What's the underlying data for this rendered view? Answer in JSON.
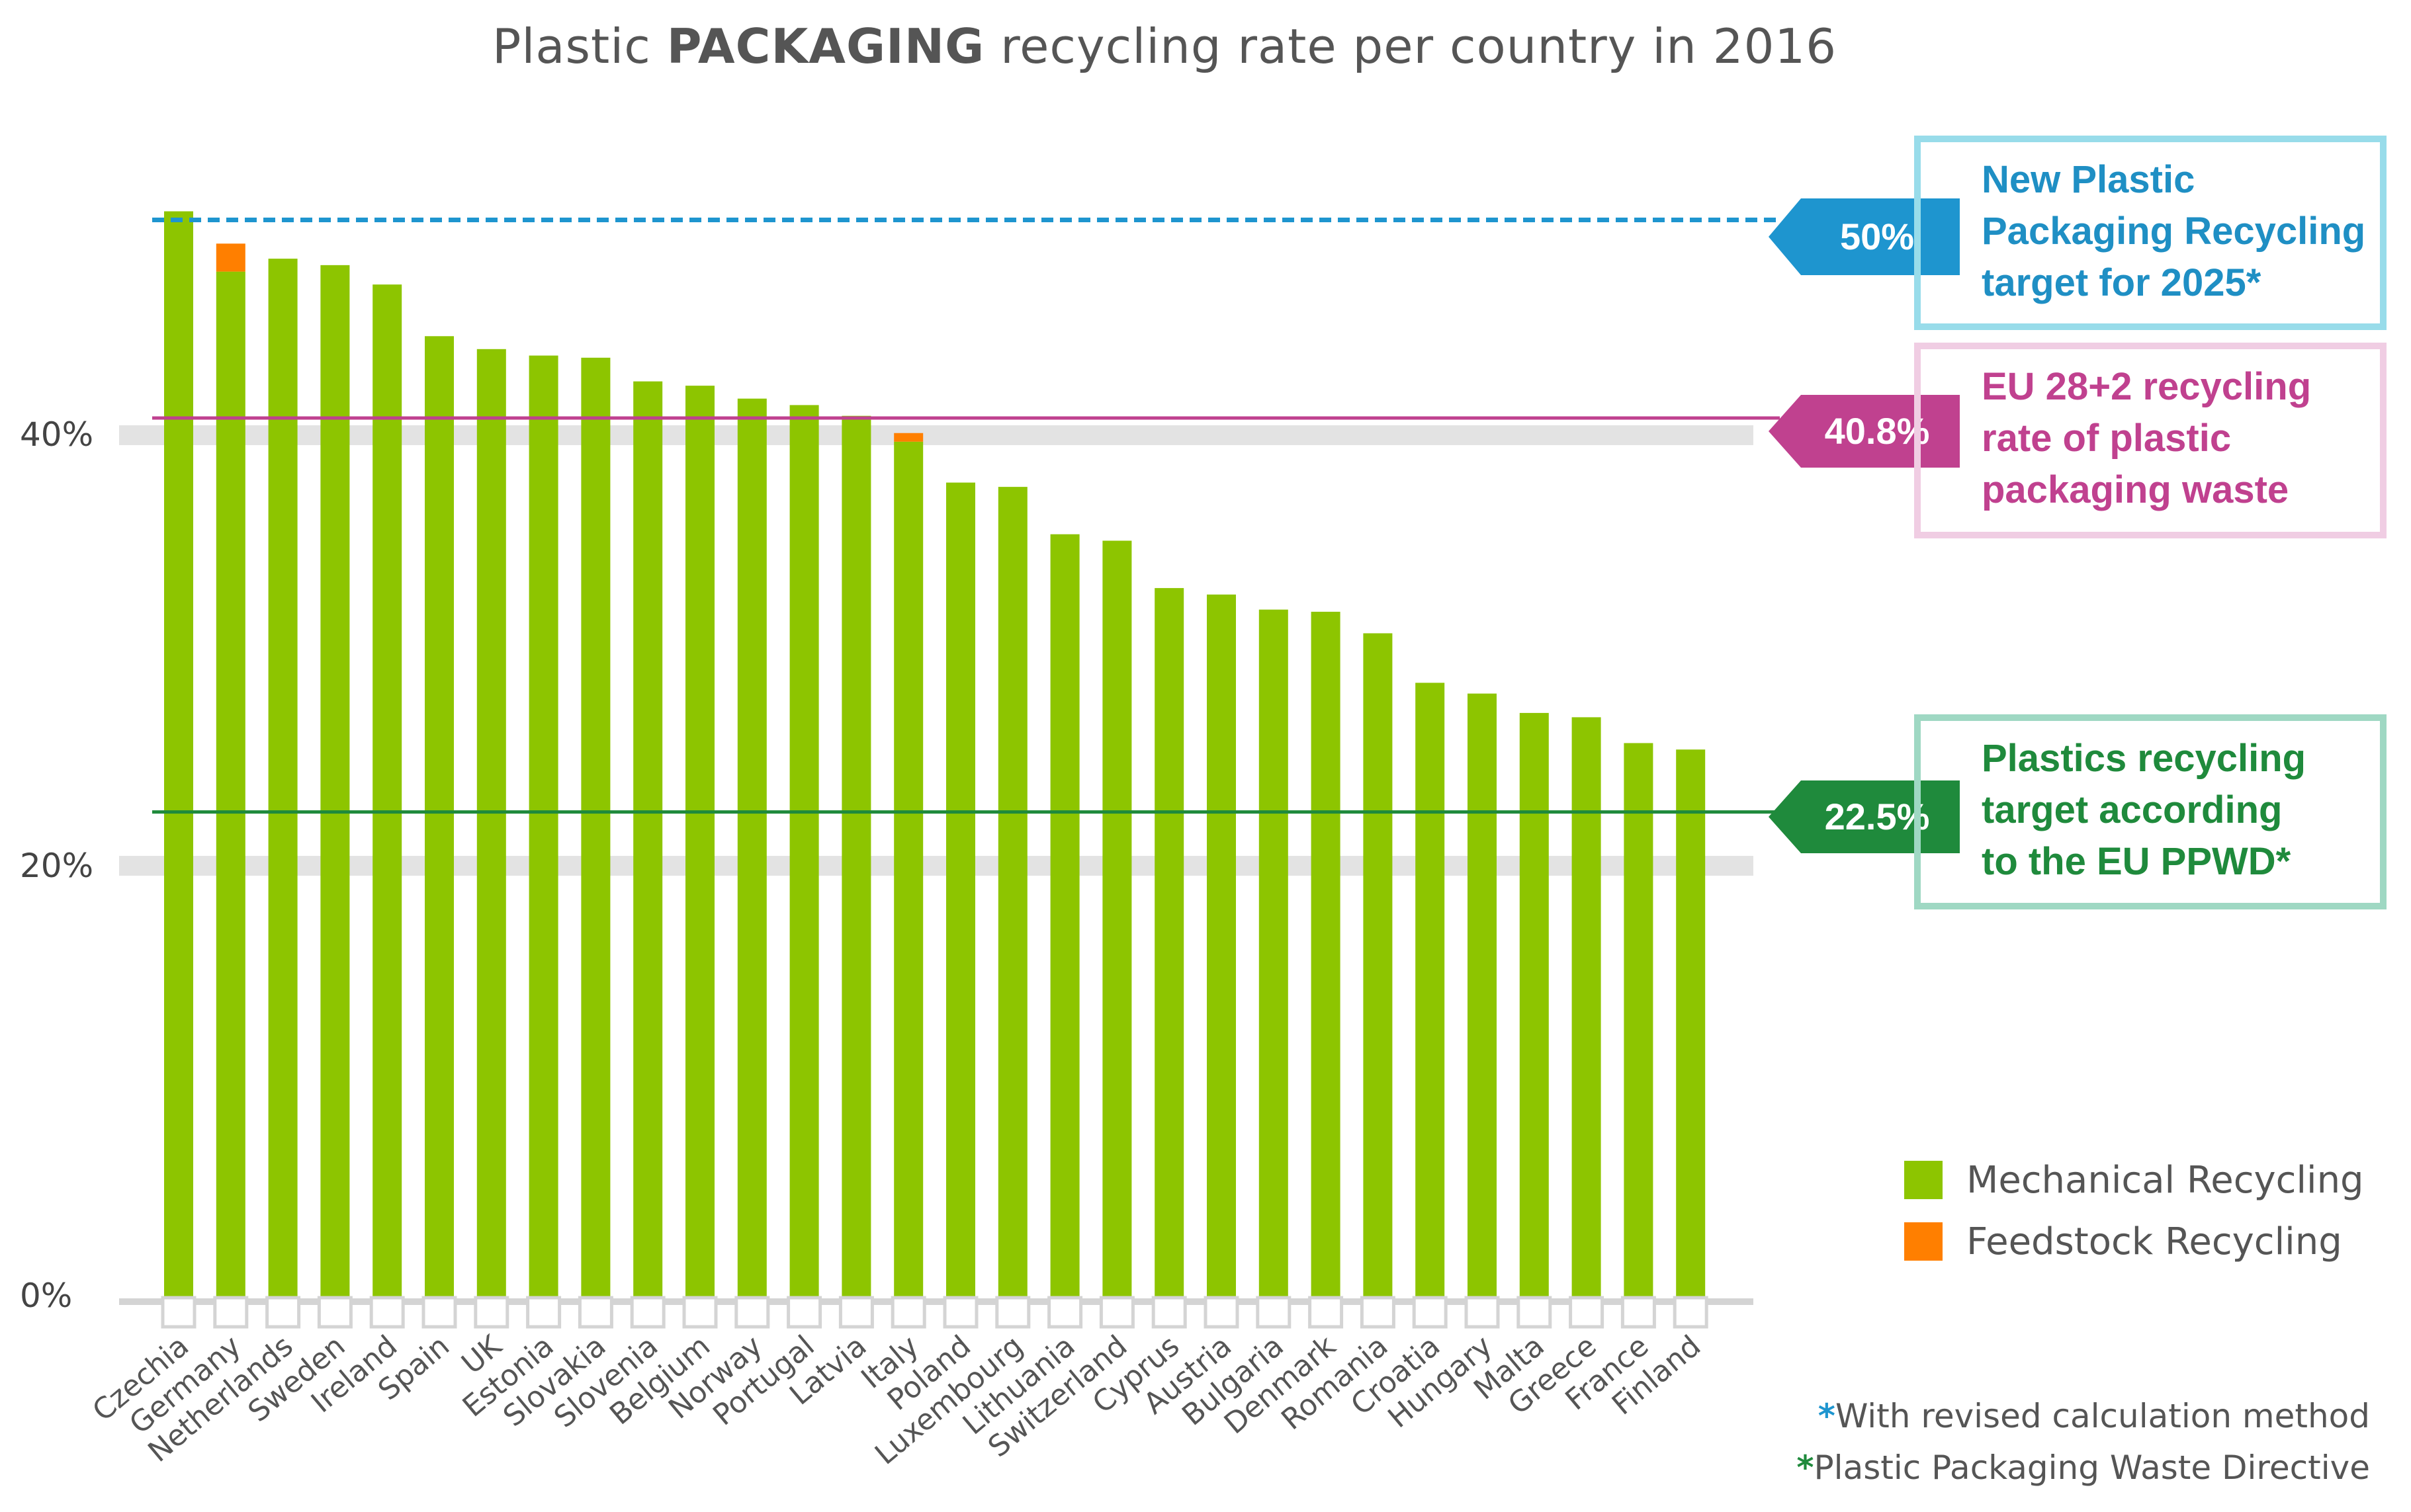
{
  "chart_data": {
    "type": "bar",
    "stacked": true,
    "title_prefix": "Plastic ",
    "title_bold": "PACKAGING",
    "title_suffix": " recycling rate per country in 2016",
    "categories": [
      "Czechia",
      "Germany",
      "Netherlands",
      "Sweden",
      "Ireland",
      "Spain",
      "UK",
      "Estonia",
      "Slovakia",
      "Slovenia",
      "Belgium",
      "Norway",
      "Portugal",
      "Latvia",
      "Italy",
      "Poland",
      "Luxembourg",
      "Lithuania",
      "Switzerland",
      "Cyprus",
      "Austria",
      "Bulgaria",
      "Denmark",
      "Romania",
      "Croatia",
      "Hungary",
      "Malta",
      "Greece",
      "France",
      "Finland"
    ],
    "series": [
      {
        "name": "Mechanical Recycling",
        "color": "#8dc500",
        "values": [
          50.4,
          47.6,
          48.2,
          47.9,
          47.0,
          44.6,
          44.0,
          43.7,
          43.6,
          42.5,
          42.3,
          41.7,
          41.4,
          40.9,
          39.7,
          37.8,
          37.6,
          35.4,
          35.1,
          32.9,
          32.6,
          31.9,
          31.8,
          30.8,
          28.5,
          28.0,
          27.1,
          26.9,
          25.7,
          25.4
        ]
      },
      {
        "name": "Feedstock Recycling",
        "color": "#ff7f00",
        "values": [
          0,
          1.3,
          0,
          0,
          0,
          0,
          0,
          0,
          0,
          0,
          0,
          0,
          0,
          0,
          0.4,
          0,
          0,
          0,
          0,
          0,
          0,
          0,
          0,
          0,
          0,
          0,
          0,
          0,
          0,
          0
        ]
      }
    ],
    "yticks": [
      {
        "value": 0,
        "label": "0%"
      },
      {
        "value": 20,
        "label": "20%"
      },
      {
        "value": 40,
        "label": "40%"
      }
    ],
    "ylim": [
      0,
      55
    ],
    "reference_lines": [
      {
        "value": 50,
        "tag": "50%",
        "style": "dashed",
        "color": "#1e95cf",
        "lines": [
          "New Plastic",
          "Packaging Recycling",
          "target for 2025*"
        ]
      },
      {
        "value": 40.8,
        "tag": "40.8%",
        "style": "solid",
        "color": "#c0418f",
        "lines": [
          "EU 28+2 recycling",
          "rate of plastic",
          "packaging waste"
        ]
      },
      {
        "value": 22.5,
        "tag": "22.5%",
        "style": "solid",
        "color": "#1f8a3c",
        "lines": [
          "Plastics recycling",
          "target according",
          "to the EU PPWD*"
        ]
      }
    ],
    "legend": [
      {
        "label": "Mechanical Recycling",
        "color": "#8dc500"
      },
      {
        "label": "Feedstock Recycling",
        "color": "#ff7f00"
      }
    ],
    "footnotes": [
      {
        "star": "*",
        "star_color": "#1e95cf",
        "text": "With revised calculation method"
      },
      {
        "star": "*",
        "star_color": "#1f8a3c",
        "text": "Plastic Packaging Waste Directive"
      }
    ]
  }
}
